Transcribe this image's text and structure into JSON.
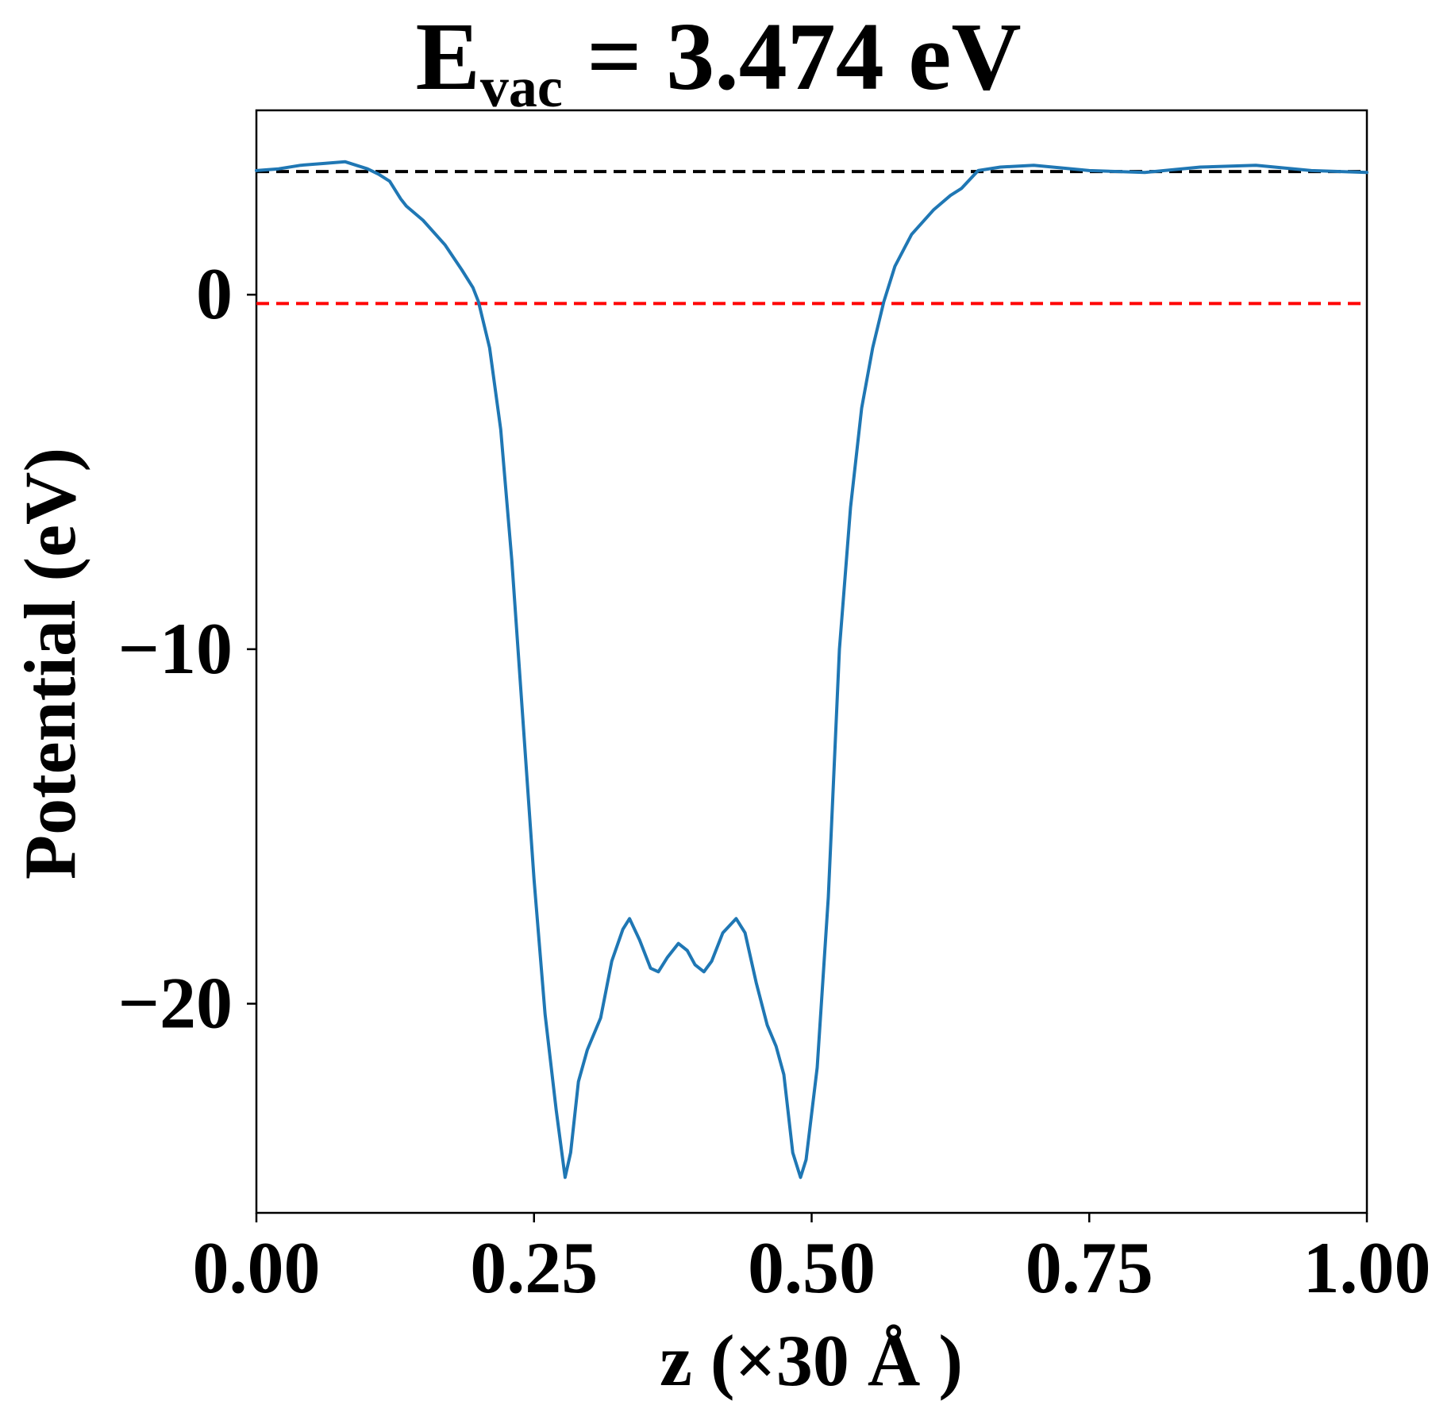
{
  "chart_data": {
    "type": "line",
    "title": {
      "main_prefix": "E",
      "subscript": "vac",
      "main_suffix": " = 3.474 eV"
    },
    "xlabel": "z (×30 Å )",
    "ylabel": "Potential (eV)",
    "xlim": [
      0.0,
      1.0
    ],
    "ylim": [
      -25.9,
      5.2
    ],
    "x_ticks": [
      {
        "value": 0.0,
        "label": "0.00"
      },
      {
        "value": 0.25,
        "label": "0.25"
      },
      {
        "value": 0.5,
        "label": "0.50"
      },
      {
        "value": 0.75,
        "label": "0.75"
      },
      {
        "value": 1.0,
        "label": "1.00"
      }
    ],
    "y_ticks": [
      {
        "value": 0,
        "label": "0"
      },
      {
        "value": -10,
        "label": "−10"
      },
      {
        "value": -20,
        "label": "−20"
      }
    ],
    "grid": false,
    "reference_lines": [
      {
        "name": "vacuum-level",
        "y": 3.474,
        "color": "#000000",
        "style": "dashed"
      },
      {
        "name": "fermi-level",
        "y": -0.25,
        "color": "#ff0000",
        "style": "dashed"
      }
    ],
    "series": [
      {
        "color": "#1f77b4",
        "points": [
          [
            0.0,
            3.5
          ],
          [
            0.02,
            3.55
          ],
          [
            0.04,
            3.65
          ],
          [
            0.06,
            3.7
          ],
          [
            0.08,
            3.75
          ],
          [
            0.1,
            3.55
          ],
          [
            0.11,
            3.4
          ],
          [
            0.12,
            3.2
          ],
          [
            0.13,
            2.7
          ],
          [
            0.135,
            2.5
          ],
          [
            0.15,
            2.1
          ],
          [
            0.17,
            1.4
          ],
          [
            0.185,
            0.7
          ],
          [
            0.195,
            0.2
          ],
          [
            0.2,
            -0.2
          ],
          [
            0.21,
            -1.5
          ],
          [
            0.22,
            -3.8
          ],
          [
            0.23,
            -7.5
          ],
          [
            0.24,
            -12.0
          ],
          [
            0.25,
            -16.5
          ],
          [
            0.26,
            -20.3
          ],
          [
            0.27,
            -23.0
          ],
          [
            0.278,
            -24.9
          ],
          [
            0.283,
            -24.2
          ],
          [
            0.29,
            -22.2
          ],
          [
            0.298,
            -21.3
          ],
          [
            0.31,
            -20.4
          ],
          [
            0.32,
            -18.8
          ],
          [
            0.33,
            -17.9
          ],
          [
            0.336,
            -17.6
          ],
          [
            0.345,
            -18.2
          ],
          [
            0.355,
            -19.0
          ],
          [
            0.362,
            -19.1
          ],
          [
            0.37,
            -18.7
          ],
          [
            0.38,
            -18.3
          ],
          [
            0.388,
            -18.5
          ],
          [
            0.395,
            -18.9
          ],
          [
            0.403,
            -19.1
          ],
          [
            0.41,
            -18.8
          ],
          [
            0.42,
            -18.0
          ],
          [
            0.432,
            -17.6
          ],
          [
            0.44,
            -18.0
          ],
          [
            0.45,
            -19.4
          ],
          [
            0.46,
            -20.6
          ],
          [
            0.468,
            -21.2
          ],
          [
            0.475,
            -22.0
          ],
          [
            0.483,
            -24.2
          ],
          [
            0.49,
            -24.9
          ],
          [
            0.495,
            -24.4
          ],
          [
            0.505,
            -21.8
          ],
          [
            0.515,
            -17.0
          ],
          [
            0.525,
            -10.0
          ],
          [
            0.535,
            -6.0
          ],
          [
            0.545,
            -3.2
          ],
          [
            0.555,
            -1.5
          ],
          [
            0.565,
            -0.2
          ],
          [
            0.575,
            0.8
          ],
          [
            0.59,
            1.7
          ],
          [
            0.61,
            2.4
          ],
          [
            0.625,
            2.8
          ],
          [
            0.635,
            3.0
          ],
          [
            0.65,
            3.5
          ],
          [
            0.67,
            3.6
          ],
          [
            0.7,
            3.65
          ],
          [
            0.75,
            3.5
          ],
          [
            0.8,
            3.45
          ],
          [
            0.85,
            3.6
          ],
          [
            0.9,
            3.65
          ],
          [
            0.95,
            3.5
          ],
          [
            1.0,
            3.45
          ]
        ]
      }
    ]
  }
}
